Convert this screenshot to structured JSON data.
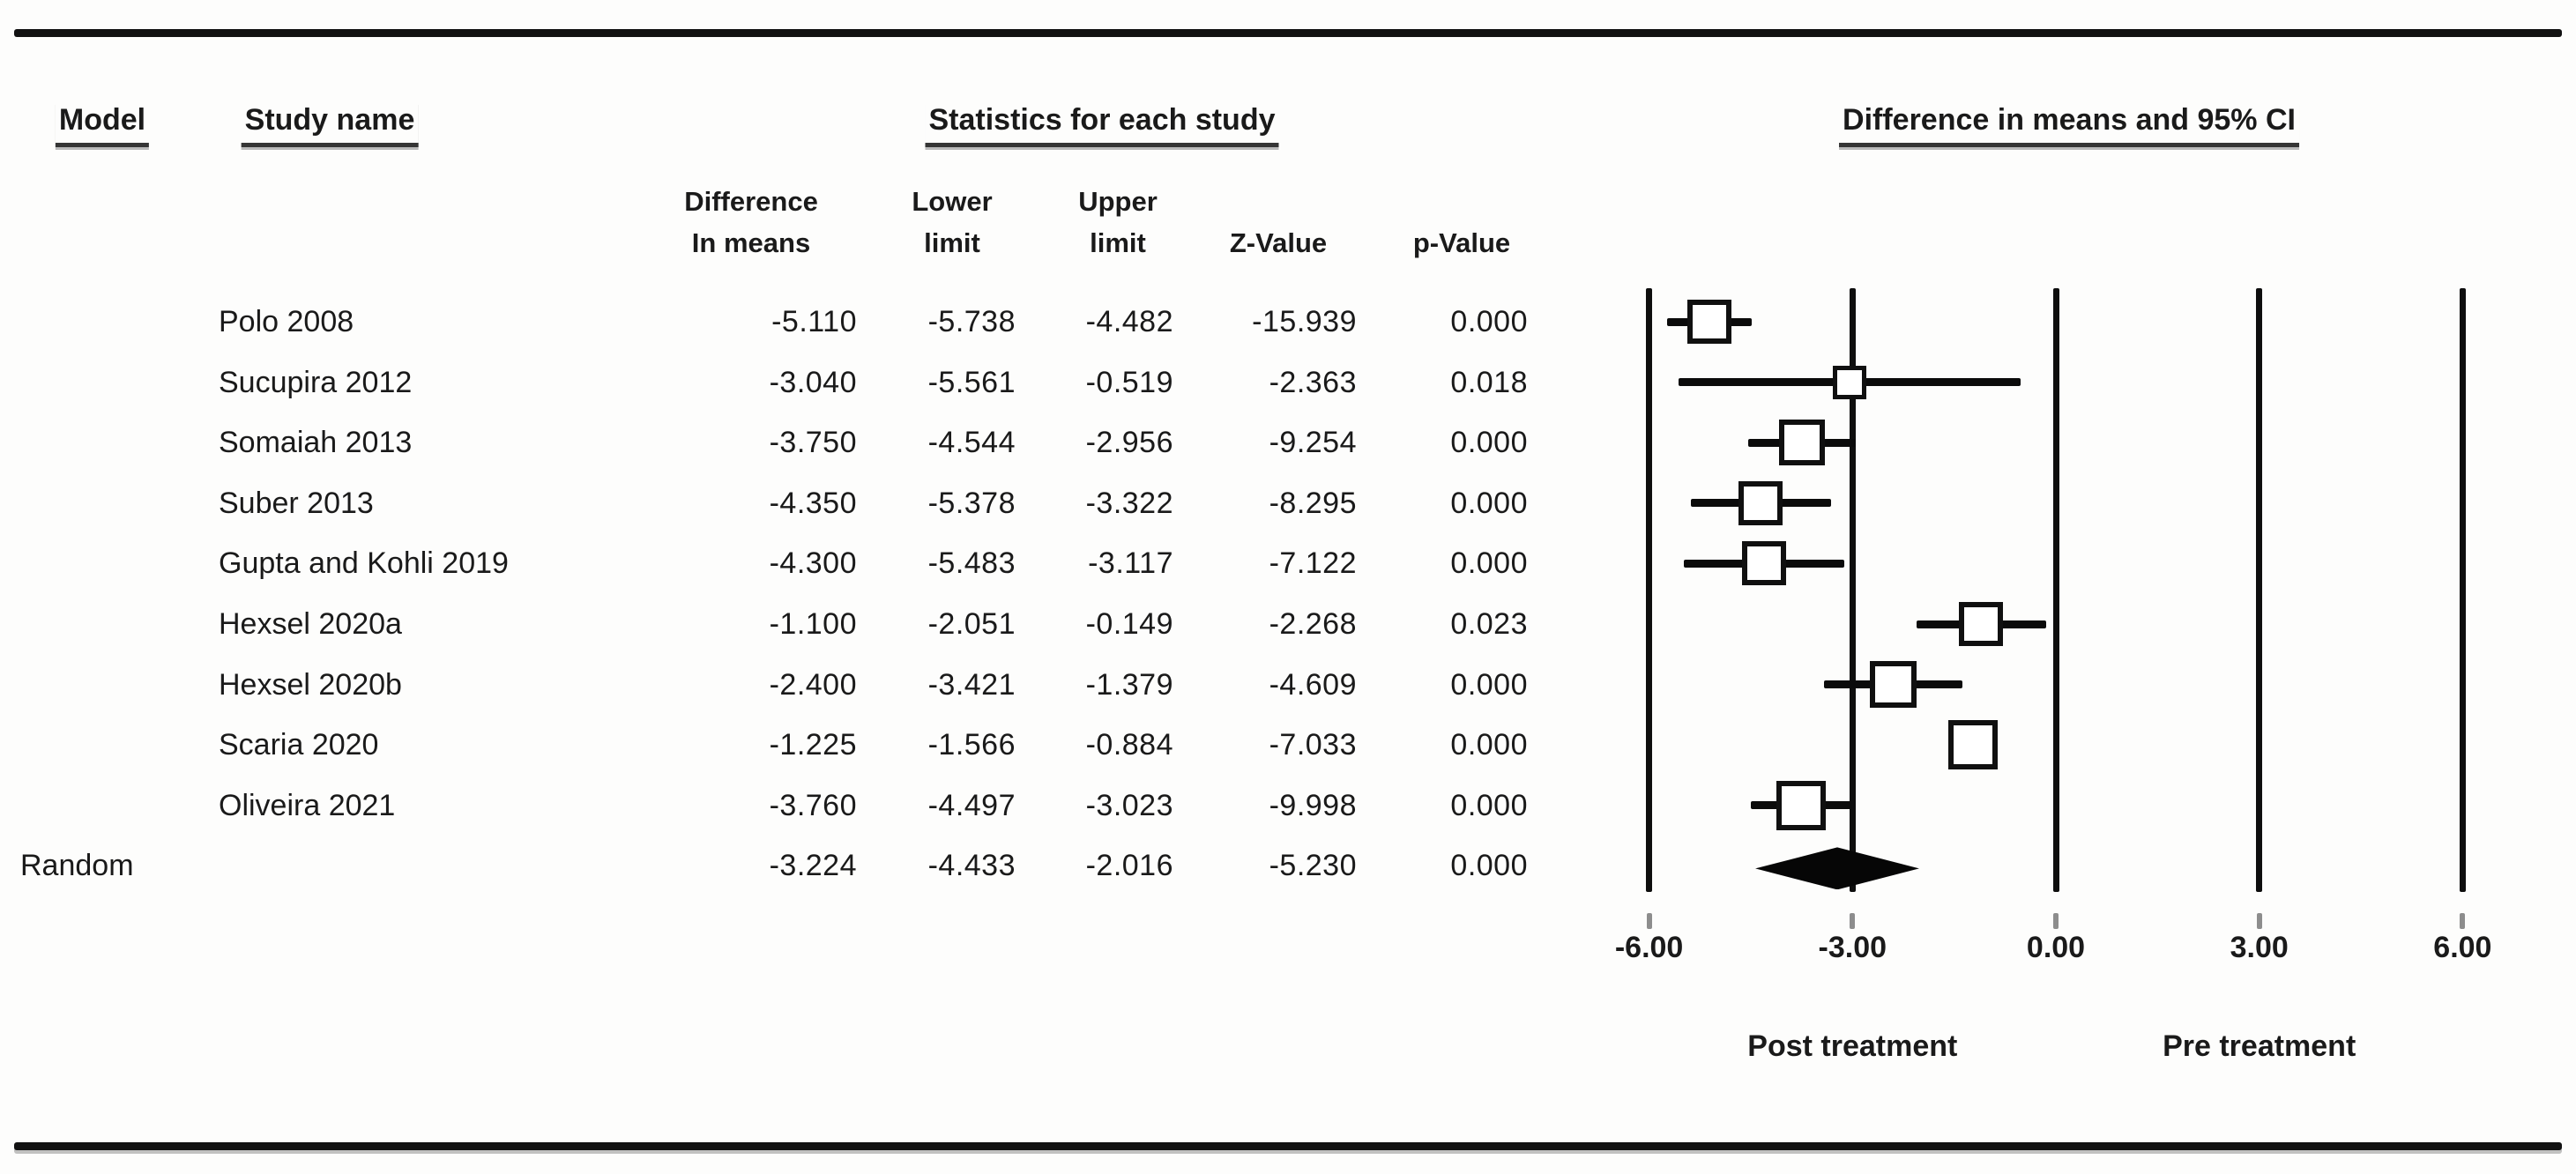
{
  "header": {
    "model": "Model",
    "study_name": "Study name",
    "statistics": "Statistics for each study",
    "plot_title": "Difference in means and 95% CI"
  },
  "stat_columns": [
    {
      "line1": "Difference",
      "line2": "In means"
    },
    {
      "line1": "Lower",
      "line2": "limit"
    },
    {
      "line1": "Upper",
      "line2": "limit"
    },
    {
      "line1": "",
      "line2": "Z-Value"
    },
    {
      "line1": "",
      "line2": "p-Value"
    }
  ],
  "chart_data": {
    "type": "forest",
    "title": "Difference in means and 95% CI",
    "columns": [
      "Difference in means",
      "Lower limit",
      "Upper limit",
      "Z-Value",
      "p-Value"
    ],
    "studies": [
      {
        "name": "Polo 2008",
        "diff": "-5.110",
        "lower": "-5.738",
        "upper": "-4.482",
        "z": "-15.939",
        "p": "0.000",
        "square": 50
      },
      {
        "name": "Sucupira 2012",
        "diff": "-3.040",
        "lower": "-5.561",
        "upper": "-0.519",
        "z": "-2.363",
        "p": "0.018",
        "square": 38
      },
      {
        "name": "Somaiah 2013",
        "diff": "-3.750",
        "lower": "-4.544",
        "upper": "-2.956",
        "z": "-9.254",
        "p": "0.000",
        "square": 52
      },
      {
        "name": "Suber 2013",
        "diff": "-4.350",
        "lower": "-5.378",
        "upper": "-3.322",
        "z": "-8.295",
        "p": "0.000",
        "square": 50
      },
      {
        "name": "Gupta and Kohli 2019",
        "diff": "-4.300",
        "lower": "-5.483",
        "upper": "-3.117",
        "z": "-7.122",
        "p": "0.000",
        "square": 50
      },
      {
        "name": "Hexsel 2020a",
        "diff": "-1.100",
        "lower": "-2.051",
        "upper": "-0.149",
        "z": "-2.268",
        "p": "0.023",
        "square": 50
      },
      {
        "name": "Hexsel 2020b",
        "diff": "-2.400",
        "lower": "-3.421",
        "upper": "-1.379",
        "z": "-4.609",
        "p": "0.000",
        "square": 53
      },
      {
        "name": "Scaria 2020",
        "diff": "-1.225",
        "lower": "-1.566",
        "upper": "-0.884",
        "z": "-7.033",
        "p": "0.000",
        "square": 56
      },
      {
        "name": "Oliveira 2021",
        "diff": "-3.760",
        "lower": "-4.497",
        "upper": "-3.023",
        "z": "-9.998",
        "p": "0.000",
        "square": 56
      }
    ],
    "summary": {
      "model": "Random",
      "diff": "-3.224",
      "lower": "-4.433",
      "upper": "-2.016",
      "z": "-5.230",
      "p": "0.000"
    },
    "x_axis": {
      "tick_values": [
        -6,
        -3,
        0,
        3,
        6
      ],
      "tick_labels": [
        "-6.00",
        "-3.00",
        "0.00",
        "3.00",
        "6.00"
      ],
      "xlim": [
        -6,
        6
      ]
    },
    "footer_labels": [
      "Post treatment",
      "Pre treatment"
    ],
    "legend_position": "none",
    "grid": false,
    "ink_color": "#0e0e0e"
  }
}
